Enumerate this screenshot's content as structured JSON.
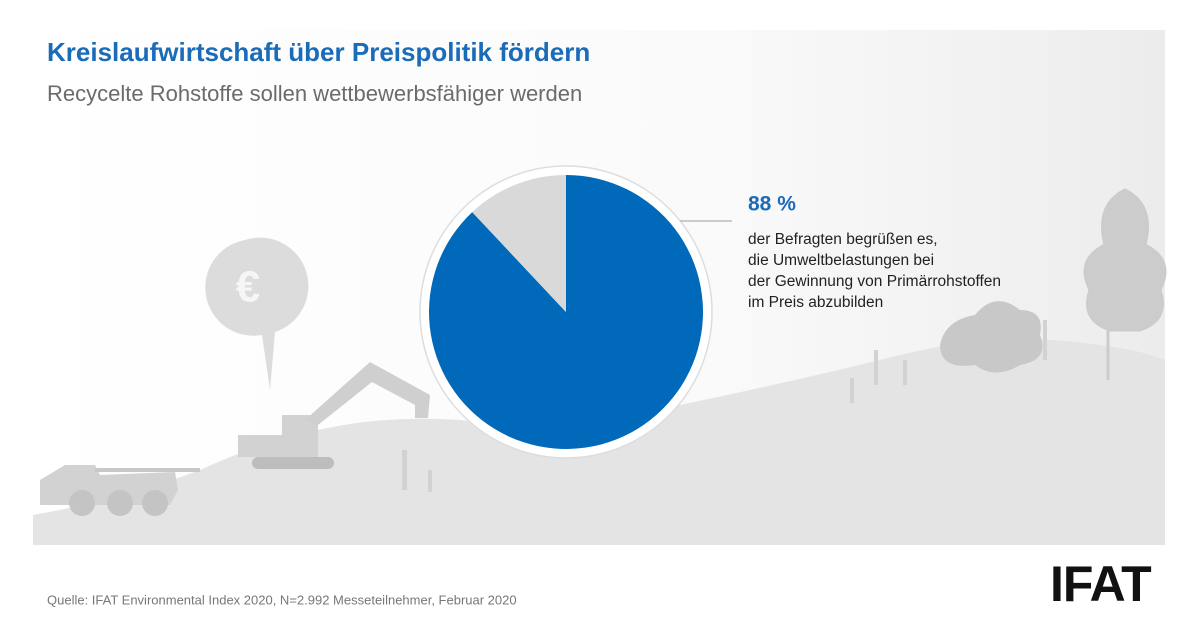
{
  "chart_data": {
    "type": "pie",
    "title": "Kreislaufwirtschaft über Preispolitik fördern",
    "subtitle": "Recycelte Rohstoffe sollen wettbewerbsfähiger werden",
    "values": [
      88,
      12
    ],
    "value_labels": [
      "88 %",
      null
    ],
    "colors": [
      "#0069b9",
      "#d9d9d9"
    ],
    "annotation": [
      "der Befragten begrüßen es,",
      "die Umweltbelastungen bei",
      "der Gewinnung von Primärrohstoffen",
      "im Preis abzubilden"
    ],
    "source": "Quelle: IFAT Environmental Index 2020, N=2.992 Messeteilnehmer, Februar 2020",
    "logo": "IFAT"
  }
}
